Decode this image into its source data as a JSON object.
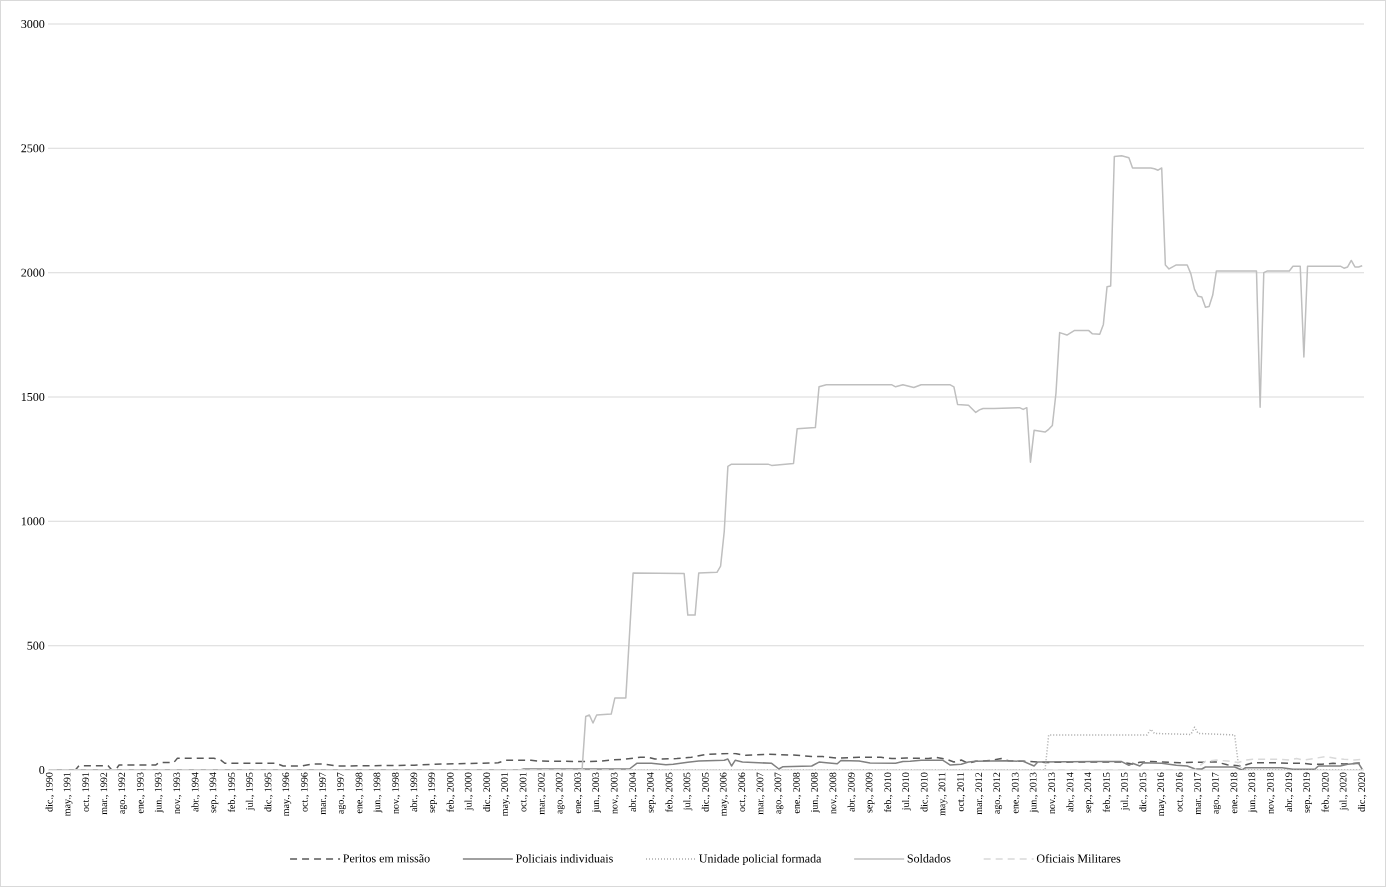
{
  "chart_data": {
    "type": "line",
    "xlim": [
      "1990-11-16",
      "2020-12-16"
    ],
    "xticks": [
      {
        "value": "1990-12",
        "label": "dic., 1990"
      },
      {
        "value": "1991-05",
        "label": "may., 1991"
      },
      {
        "value": "1991-10",
        "label": "oct., 1991"
      },
      {
        "value": "1992-03",
        "label": "mar., 1992"
      },
      {
        "value": "1992-08",
        "label": "ago., 1992"
      },
      {
        "value": "1993-01",
        "label": "ene., 1993"
      },
      {
        "value": "1993-06",
        "label": "jun., 1993"
      },
      {
        "value": "1993-11",
        "label": "nov., 1993"
      },
      {
        "value": "1994-04",
        "label": "abr., 1994"
      },
      {
        "value": "1994-09",
        "label": "sep., 1994"
      },
      {
        "value": "1995-02",
        "label": "feb., 1995"
      },
      {
        "value": "1995-07",
        "label": "jul., 1995"
      },
      {
        "value": "1995-12",
        "label": "dic., 1995"
      },
      {
        "value": "1996-05",
        "label": "may., 1996"
      },
      {
        "value": "1996-10",
        "label": "oct., 1996"
      },
      {
        "value": "1997-03",
        "label": "mar., 1997"
      },
      {
        "value": "1997-08",
        "label": "ago., 1997"
      },
      {
        "value": "1998-01",
        "label": "ene., 1998"
      },
      {
        "value": "1998-06",
        "label": "jun., 1998"
      },
      {
        "value": "1998-11",
        "label": "nov., 1998"
      },
      {
        "value": "1999-04",
        "label": "abr., 1999"
      },
      {
        "value": "1999-09",
        "label": "sep., 1999"
      },
      {
        "value": "2000-02",
        "label": "feb., 2000"
      },
      {
        "value": "2000-07",
        "label": "jul., 2000"
      },
      {
        "value": "2000-12",
        "label": "dic., 2000"
      },
      {
        "value": "2001-05",
        "label": "may., 2001"
      },
      {
        "value": "2001-10",
        "label": "oct., 2001"
      },
      {
        "value": "2002-03",
        "label": "mar., 2002"
      },
      {
        "value": "2002-08",
        "label": "ago., 2002"
      },
      {
        "value": "2003-01",
        "label": "ene., 2003"
      },
      {
        "value": "2003-06",
        "label": "jun., 2003"
      },
      {
        "value": "2003-11",
        "label": "nov., 2003"
      },
      {
        "value": "2004-04",
        "label": "abr., 2004"
      },
      {
        "value": "2004-09",
        "label": "sep., 2004"
      },
      {
        "value": "2005-02",
        "label": "feb., 2005"
      },
      {
        "value": "2005-07",
        "label": "jul., 2005"
      },
      {
        "value": "2005-12",
        "label": "dic., 2005"
      },
      {
        "value": "2006-05",
        "label": "may., 2006"
      },
      {
        "value": "2006-10",
        "label": "oct., 2006"
      },
      {
        "value": "2007-03",
        "label": "mar., 2007"
      },
      {
        "value": "2007-08",
        "label": "ago., 2007"
      },
      {
        "value": "2008-01",
        "label": "ene., 2008"
      },
      {
        "value": "2008-06",
        "label": "jun., 2008"
      },
      {
        "value": "2008-11",
        "label": "nov., 2008"
      },
      {
        "value": "2009-04",
        "label": "abr., 2009"
      },
      {
        "value": "2009-09",
        "label": "sep., 2009"
      },
      {
        "value": "2010-02",
        "label": "feb., 2010"
      },
      {
        "value": "2010-07",
        "label": "jul., 2010"
      },
      {
        "value": "2010-12",
        "label": "dic., 2010"
      },
      {
        "value": "2011-05",
        "label": "may., 2011"
      },
      {
        "value": "2011-10",
        "label": "oct., 2011"
      },
      {
        "value": "2012-03",
        "label": "mar., 2012"
      },
      {
        "value": "2012-08",
        "label": "ago., 2012"
      },
      {
        "value": "2013-01",
        "label": "ene., 2013"
      },
      {
        "value": "2013-06",
        "label": "jun., 2013"
      },
      {
        "value": "2013-11",
        "label": "nov., 2013"
      },
      {
        "value": "2014-04",
        "label": "abr., 2014"
      },
      {
        "value": "2014-09",
        "label": "sep., 2014"
      },
      {
        "value": "2015-02",
        "label": "feb., 2015"
      },
      {
        "value": "2015-07",
        "label": "jul., 2015"
      },
      {
        "value": "2015-12",
        "label": "dic., 2015"
      },
      {
        "value": "2016-05",
        "label": "may., 2016"
      },
      {
        "value": "2016-10",
        "label": "oct., 2016"
      },
      {
        "value": "2017-03",
        "label": "mar., 2017"
      },
      {
        "value": "2017-08",
        "label": "ago., 2017"
      },
      {
        "value": "2018-01",
        "label": "ene., 2018"
      },
      {
        "value": "2018-06",
        "label": "jun., 2018"
      },
      {
        "value": "2018-11",
        "label": "nov., 2018"
      },
      {
        "value": "2019-04",
        "label": "abr., 2019"
      },
      {
        "value": "2019-09",
        "label": "sep., 2019"
      },
      {
        "value": "2020-02",
        "label": "feb., 2020"
      },
      {
        "value": "2020-07",
        "label": "jul., 2020"
      },
      {
        "value": "2020-12",
        "label": "dic., 2020"
      }
    ],
    "ylim": [
      0,
      3000
    ],
    "yticks": [
      0,
      500,
      1000,
      1500,
      2000,
      2500,
      3000
    ],
    "grid": "y",
    "legend": "bottom",
    "series": [
      {
        "name": "Peritos em missão",
        "color": "#595959",
        "line_style": "dashed",
        "x": [
          "1990-12",
          "1991-07",
          "1991-08",
          "1992-04",
          "1992-05",
          "1992-06",
          "1992-07",
          "1993-05",
          "1993-06",
          "1993-10",
          "1993-11",
          "1994-09",
          "1994-11",
          "1994-12",
          "1996-02",
          "1996-04",
          "1996-09",
          "1996-12",
          "1997-03",
          "1997-07",
          "1999-04",
          "1999-09",
          "2000-10",
          "2001-03",
          "2001-05",
          "2001-12",
          "2002-02",
          "2003-03",
          "2003-07",
          "2003-10",
          "2004-02",
          "2004-06",
          "2004-08",
          "2004-10",
          "2005-04",
          "2005-08",
          "2005-12",
          "2006-06",
          "2006-08",
          "2006-11",
          "2007-05",
          "2007-12",
          "2008-05",
          "2008-08",
          "2008-12",
          "2009-06",
          "2009-12",
          "2010-03",
          "2010-07",
          "2011-01",
          "2011-03",
          "2011-06",
          "2011-08",
          "2011-10",
          "2011-12",
          "2012-02",
          "2012-06",
          "2012-09",
          "2012-11",
          "2013-05",
          "2013-09",
          "2014-04",
          "2015-06",
          "2015-09",
          "2015-11",
          "2016-02",
          "2016-10",
          "2017-02",
          "2017-08",
          "2017-11",
          "2018-03",
          "2018-06",
          "2019-01",
          "2019-04",
          "2019-08",
          "2019-10",
          "2020-01",
          "2020-04",
          "2020-07",
          "2020-12"
        ],
        "values": [
          0,
          0,
          17,
          17,
          0,
          0,
          20,
          20,
          30,
          30,
          47,
          47,
          39,
          27,
          27,
          16,
          16,
          24,
          24,
          16,
          19,
          23,
          27,
          29,
          39,
          39,
          36,
          34,
          36,
          40,
          44,
          51,
          51,
          44,
          46,
          51,
          63,
          66,
          66,
          59,
          63,
          60,
          54,
          54,
          48,
          51,
          51,
          46,
          48,
          46,
          51,
          43,
          32,
          40,
          27,
          35,
          38,
          46,
          37,
          34,
          30,
          32,
          32,
          24,
          31,
          34,
          29,
          31,
          32,
          21,
          16,
          29,
          29,
          27,
          27,
          23,
          23,
          27,
          24,
          29
        ]
      },
      {
        "name": "Policiais individuais",
        "color": "#808080",
        "line_style": "solid",
        "x": [
          "1990-12",
          "2001-09",
          "2001-10",
          "2004-03",
          "2004-05",
          "2004-09",
          "2005-01",
          "2005-03",
          "2005-07",
          "2005-10",
          "2006-05",
          "2006-06",
          "2006-07",
          "2006-08",
          "2006-10",
          "2007-06",
          "2007-08",
          "2007-09",
          "2008-05",
          "2008-07",
          "2008-09",
          "2008-12",
          "2009-01",
          "2009-06",
          "2009-09",
          "2010-04",
          "2010-06",
          "2010-08",
          "2010-11",
          "2011-05",
          "2011-07",
          "2011-10",
          "2011-12",
          "2012-02",
          "2012-06",
          "2012-10",
          "2013-03",
          "2013-06",
          "2013-07",
          "2014-11",
          "2015-06",
          "2015-08",
          "2015-09",
          "2015-11",
          "2015-12",
          "2016-05",
          "2016-09",
          "2016-12",
          "2017-02",
          "2017-04",
          "2017-05",
          "2018-01",
          "2018-03",
          "2018-04",
          "2019-02",
          "2019-05",
          "2019-11",
          "2019-12",
          "2020-06",
          "2020-08",
          "2020-11",
          "2020-12"
        ],
        "values": [
          0,
          0,
          4,
          4,
          27,
          27,
          21,
          23,
          31,
          36,
          39,
          44,
          16,
          39,
          32,
          27,
          4,
          13,
          16,
          32,
          29,
          25,
          38,
          36,
          28,
          27,
          34,
          35,
          39,
          39,
          20,
          23,
          32,
          35,
          36,
          37,
          35,
          16,
          32,
          34,
          34,
          19,
          27,
          16,
          29,
          27,
          19,
          16,
          5,
          4,
          12,
          12,
          0,
          9,
          9,
          3,
          3,
          16,
          16,
          23,
          27,
          3
        ]
      },
      {
        "name": "Unidade policial formada",
        "color": "#a6a6a6",
        "line_style": "dotted",
        "x": [
          "1990-12",
          "2013-09",
          "2013-10",
          "2016-01",
          "2016-02",
          "2016-03",
          "2017-01",
          "2017-02",
          "2017-03",
          "2018-01",
          "2018-02",
          "2018-03",
          "2020-12"
        ],
        "values": [
          0,
          0,
          141,
          141,
          164,
          147,
          143,
          172,
          147,
          141,
          27,
          0,
          0
        ]
      },
      {
        "name": "Soldados",
        "color": "#bfbfbf",
        "line_style": "solid",
        "x": [
          "1990-12",
          "2003-02",
          "2003-03",
          "2003-04",
          "2003-05",
          "2003-06",
          "2003-10",
          "2003-11",
          "2004-02",
          "2004-04",
          "2005-06",
          "2005-07",
          "2005-09",
          "2005-10",
          "2006-03",
          "2006-04",
          "2006-05",
          "2006-06",
          "2006-07",
          "2007-05",
          "2007-06",
          "2007-12",
          "2008-01",
          "2008-06",
          "2008-07",
          "2008-09",
          "2010-03",
          "2010-04",
          "2010-06",
          "2010-09",
          "2010-11",
          "2011-07",
          "2011-08",
          "2011-09",
          "2011-12",
          "2012-02",
          "2012-03",
          "2012-04",
          "2012-07",
          "2013-02",
          "2013-03",
          "2013-04",
          "2013-05",
          "2013-06",
          "2013-09",
          "2013-10",
          "2013-11",
          "2013-12",
          "2014-01",
          "2014-03",
          "2014-05",
          "2014-09",
          "2014-10",
          "2014-12",
          "2015-01",
          "2015-02",
          "2015-03",
          "2015-04",
          "2015-06",
          "2015-08",
          "2015-09",
          "2016-02",
          "2016-03",
          "2016-04",
          "2016-05",
          "2016-06",
          "2016-07",
          "2016-09",
          "2016-12",
          "2017-01",
          "2017-02",
          "2017-03",
          "2017-04",
          "2017-05",
          "2017-06",
          "2017-07",
          "2017-08",
          "2018-07",
          "2018-08",
          "2018-09",
          "2018-10",
          "2019-04",
          "2019-05",
          "2019-07",
          "2019-08",
          "2019-09",
          "2020-06",
          "2020-07",
          "2020-08",
          "2020-09",
          "2020-10",
          "2020-11",
          "2020-12"
        ],
        "values": [
          0,
          0,
          215,
          221,
          189,
          221,
          225,
          290,
          290,
          792,
          790,
          623,
          623,
          792,
          795,
          820,
          959,
          1221,
          1230,
          1230,
          1225,
          1233,
          1372,
          1377,
          1541,
          1549,
          1549,
          1541,
          1549,
          1538,
          1549,
          1549,
          1541,
          1470,
          1467,
          1438,
          1448,
          1454,
          1454,
          1457,
          1450,
          1457,
          1238,
          1366,
          1359,
          1370,
          1385,
          1516,
          1759,
          1749,
          1767,
          1767,
          1754,
          1752,
          1792,
          1943,
          1946,
          2467,
          2470,
          2462,
          2421,
          2421,
          2418,
          2412,
          2421,
          2031,
          2015,
          2031,
          2031,
          1995,
          1933,
          1905,
          1902,
          1861,
          1864,
          1910,
          2007,
          2007,
          1459,
          2000,
          2007,
          2007,
          2026,
          2026,
          1661,
          2026,
          2026,
          2018,
          2023,
          2049,
          2023,
          2023,
          2028
        ]
      },
      {
        "name": "Oficiais Militares",
        "color": "#d9d9d9",
        "line_style": "dashed",
        "x": [
          "1990-12",
          "2017-02",
          "2017-05",
          "2017-08",
          "2017-11",
          "2018-02",
          "2018-04",
          "2018-06",
          "2019-01",
          "2019-04",
          "2019-06",
          "2019-08",
          "2019-11",
          "2020-02",
          "2020-05",
          "2020-07",
          "2020-10",
          "2020-12"
        ],
        "values": [
          0,
          0,
          35,
          40,
          36,
          30,
          40,
          43,
          43,
          40,
          46,
          40,
          47,
          54,
          46,
          43,
          40,
          43
        ]
      }
    ]
  }
}
